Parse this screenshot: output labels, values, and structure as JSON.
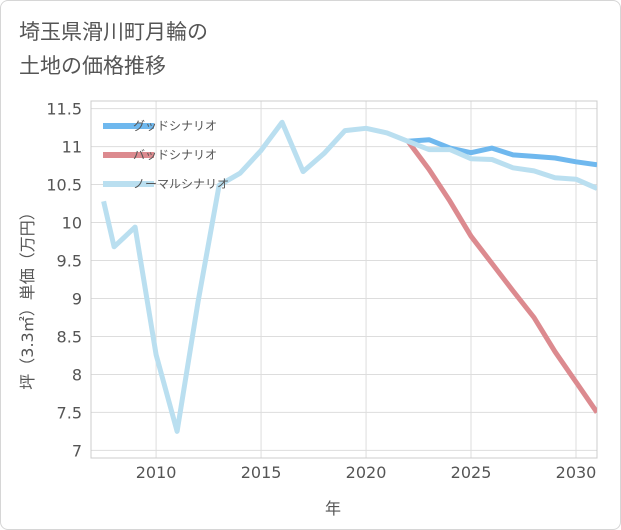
{
  "title_lines": [
    "埼玉県滑川町月輪の",
    "土地の価格推移"
  ],
  "chart_data": {
    "type": "line",
    "xlabel": "年",
    "ylabel": "坪（3.3㎡）単価（万円）",
    "xlim": [
      2006.9,
      2031
    ],
    "ylim": [
      6.9,
      11.6
    ],
    "x_ticks": [
      2010,
      2015,
      2020,
      2025,
      2030
    ],
    "y_ticks": [
      7,
      7.5,
      8,
      8.5,
      9,
      9.5,
      10,
      10.5,
      11,
      11.5
    ],
    "y_tick_labels": [
      "7",
      "7.5",
      "8",
      "8.5",
      "9",
      "9.5",
      "10",
      "10.5",
      "11",
      "11.5"
    ],
    "grid": true,
    "legend_position": "top-left",
    "series": [
      {
        "name": "グッドシナリオ",
        "color": "#6fb8ee",
        "x": [
          2022,
          2023,
          2024,
          2025,
          2026,
          2027,
          2028,
          2029,
          2030,
          2031
        ],
        "values": [
          11.07,
          11.09,
          10.98,
          10.92,
          10.98,
          10.89,
          10.87,
          10.85,
          10.8,
          10.76
        ]
      },
      {
        "name": "バッドシナリオ",
        "color": "#dc8a8f",
        "x": [
          2022,
          2023,
          2024,
          2025,
          2026,
          2027,
          2028,
          2029,
          2030,
          2031
        ],
        "values": [
          11.07,
          10.7,
          10.28,
          9.82,
          9.46,
          9.1,
          8.75,
          8.3,
          7.9,
          7.5
        ]
      },
      {
        "name": "ノーマルシナリオ",
        "color": "#badff0",
        "x": [
          2007.5,
          2008,
          2009,
          2010,
          2011,
          2012,
          2013,
          2014,
          2015,
          2016,
          2017,
          2018,
          2019,
          2020,
          2021,
          2022,
          2023,
          2024,
          2025,
          2026,
          2027,
          2028,
          2029,
          2030,
          2031
        ],
        "values": [
          10.28,
          9.68,
          9.94,
          8.26,
          7.25,
          8.96,
          10.49,
          10.65,
          10.95,
          11.32,
          10.67,
          10.91,
          11.21,
          11.24,
          11.18,
          11.07,
          10.96,
          10.96,
          10.84,
          10.83,
          10.72,
          10.68,
          10.59,
          10.57,
          10.45
        ]
      }
    ]
  }
}
